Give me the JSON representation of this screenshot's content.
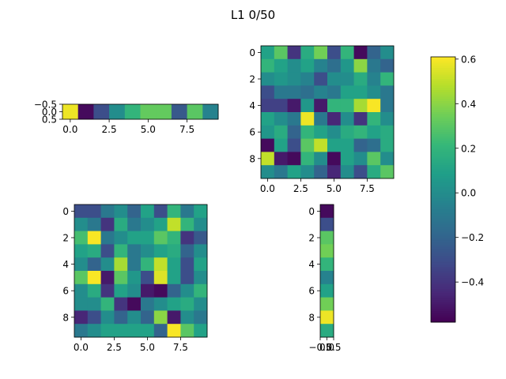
{
  "title": "L1 0/50",
  "colormap": [
    "#440154",
    "#482878",
    "#3e4a89",
    "#31688e",
    "#26828e",
    "#1f9e89",
    "#35b779",
    "#6ece58",
    "#b5de2b",
    "#fde725"
  ],
  "chart_data": {
    "type": "heatmap",
    "colorbar": {
      "vmin": -0.58,
      "vmax": 0.61,
      "ticks": [
        0.6,
        0.4,
        0.2,
        0.0,
        -0.2,
        -0.4
      ],
      "tick_labels": [
        "0.6",
        "0.4",
        "0.2",
        "0.0",
        "−0.2",
        "−0.4"
      ]
    },
    "panels": [
      {
        "name": "bias-row",
        "rows": 1,
        "cols": 10,
        "xticks": [
          0,
          2.5,
          5,
          7.5
        ],
        "xtick_labels": [
          "0.0",
          "2.5",
          "5.0",
          "7.5"
        ],
        "yticks": [
          -0.5,
          0,
          0.5
        ],
        "ytick_labels": [
          "−0.5",
          "0.0",
          "0.5"
        ],
        "values": [
          [
            0.58,
            -0.55,
            -0.3,
            0.0,
            0.2,
            0.32,
            0.32,
            -0.25,
            0.3,
            -0.05
          ]
        ]
      },
      {
        "name": "matrix-top",
        "rows": 10,
        "cols": 10,
        "xticks": [
          0,
          2.5,
          5,
          7.5
        ],
        "xtick_labels": [
          "0.0",
          "2.5",
          "5.0",
          "7.5"
        ],
        "yticks": [
          0,
          2,
          4,
          6,
          8
        ],
        "ytick_labels": [
          "0",
          "2",
          "4",
          "6",
          "8"
        ],
        "values": [
          [
            0.1,
            0.3,
            -0.4,
            0.15,
            0.35,
            -0.3,
            0.2,
            -0.55,
            -0.2,
            0.0
          ],
          [
            0.2,
            0.1,
            0.0,
            0.1,
            -0.05,
            -0.15,
            0.05,
            0.4,
            -0.1,
            -0.2
          ],
          [
            0.0,
            0.05,
            0.0,
            -0.05,
            -0.3,
            0.0,
            0.0,
            0.15,
            -0.05,
            0.2
          ],
          [
            -0.3,
            -0.1,
            -0.1,
            -0.15,
            -0.05,
            -0.1,
            0.1,
            0.1,
            0.0,
            -0.1
          ],
          [
            -0.35,
            -0.35,
            -0.5,
            0.05,
            -0.5,
            0.2,
            0.2,
            0.45,
            0.6,
            -0.1
          ],
          [
            0.1,
            0.0,
            -0.1,
            0.58,
            -0.1,
            -0.45,
            0.0,
            -0.4,
            0.2,
            0.0
          ],
          [
            0.05,
            0.15,
            -0.2,
            0.2,
            0.1,
            0.0,
            0.15,
            0.2,
            0.1,
            0.15
          ],
          [
            -0.55,
            0.1,
            -0.3,
            0.3,
            0.5,
            0.1,
            0.1,
            -0.2,
            -0.15,
            0.15
          ],
          [
            0.5,
            -0.5,
            -0.55,
            0.2,
            0.0,
            -0.55,
            0.1,
            0.0,
            0.3,
            0.0
          ],
          [
            0.0,
            -0.1,
            0.1,
            0.0,
            -0.2,
            -0.45,
            0.0,
            -0.3,
            0.15,
            0.3
          ]
        ]
      },
      {
        "name": "matrix-bottom",
        "rows": 10,
        "cols": 10,
        "xticks": [
          0,
          2.5,
          5,
          7.5
        ],
        "xtick_labels": [
          "0.0",
          "2.5",
          "5.0",
          "7.5"
        ],
        "yticks": [
          0,
          2,
          4,
          6,
          8
        ],
        "ytick_labels": [
          "0",
          "2",
          "4",
          "6",
          "8"
        ],
        "values": [
          [
            -0.3,
            -0.3,
            -0.1,
            0.0,
            -0.2,
            0.1,
            -0.3,
            0.2,
            -0.1,
            0.1
          ],
          [
            0.0,
            -0.1,
            -0.4,
            0.15,
            -0.1,
            0.0,
            0.1,
            0.5,
            0.2,
            0.0
          ],
          [
            0.25,
            0.6,
            -0.1,
            0.0,
            0.1,
            0.1,
            0.3,
            0.2,
            -0.4,
            -0.25
          ],
          [
            0.1,
            0.15,
            -0.3,
            0.2,
            -0.1,
            0.0,
            0.1,
            0.15,
            -0.2,
            0.0
          ],
          [
            0.0,
            -0.2,
            0.0,
            0.45,
            -0.1,
            0.2,
            0.5,
            0.1,
            -0.3,
            0.1
          ],
          [
            0.3,
            0.6,
            -0.5,
            0.3,
            0.05,
            -0.3,
            0.55,
            0.1,
            -0.3,
            0.0
          ],
          [
            0.0,
            0.15,
            -0.4,
            0.1,
            0.0,
            -0.5,
            -0.55,
            -0.2,
            0.0,
            0.2
          ],
          [
            0.0,
            0.0,
            0.2,
            -0.4,
            -0.55,
            -0.1,
            0.0,
            0.1,
            0.15,
            0.0
          ],
          [
            -0.45,
            -0.3,
            0.0,
            -0.2,
            0.0,
            -0.2,
            0.4,
            -0.5,
            0.0,
            -0.1
          ],
          [
            -0.1,
            0.0,
            0.1,
            0.1,
            0.1,
            0.1,
            -0.2,
            0.6,
            0.3,
            0.1
          ]
        ]
      },
      {
        "name": "bias-column",
        "rows": 10,
        "cols": 1,
        "xticks": [
          -0.5,
          0,
          0.5
        ],
        "xtick_labels": [
          "−0.5",
          "0.0",
          "0.5"
        ],
        "yticks": [
          0,
          2,
          4,
          6,
          8
        ],
        "ytick_labels": [
          "0",
          "2",
          "4",
          "6",
          "8"
        ],
        "values": [
          [
            -0.55
          ],
          [
            -0.3
          ],
          [
            0.3
          ],
          [
            0.35
          ],
          [
            0.2
          ],
          [
            -0.05
          ],
          [
            0.1
          ],
          [
            0.35
          ],
          [
            0.58
          ],
          [
            0.15
          ]
        ]
      }
    ]
  }
}
